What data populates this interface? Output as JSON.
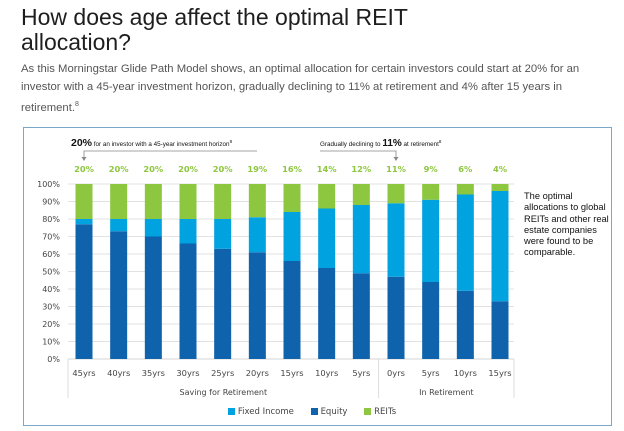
{
  "page": {
    "title": "How does age affect the optimal REIT allocation?",
    "intro": "As this Morningstar Glide Path Model shows, an optimal allocation for certain investors could start at 20% for an investor with a 45-year investment horizon, gradually declining to 11% at retirement and 4% after 15 years in retirement.",
    "intro_footnote": "8"
  },
  "annotations": {
    "left_bold": "20%",
    "left_text": " for an investor with a 45-year investment horizon",
    "left_footnote": "8",
    "right_text_pre": "Gradually declining to ",
    "right_bold": "11%",
    "right_text_post": " at retirement",
    "right_footnote": "8",
    "side_note": "The optimal allocations to global REITs and other real estate companies were found to be comparable."
  },
  "colors": {
    "fixed_income": "#00a3e0",
    "equity": "#0f62ac",
    "reits": "#8dc63f",
    "grid": "#d9d9d9",
    "frame": "#7ba7c9"
  },
  "chart_data": {
    "type": "bar",
    "stacked": true,
    "title": "",
    "xlabel": "",
    "ylabel": "",
    "ylim": [
      0,
      100
    ],
    "yticks": [
      "0%",
      "10%",
      "20%",
      "30%",
      "40%",
      "50%",
      "60%",
      "70%",
      "80%",
      "90%",
      "100%"
    ],
    "grid": true,
    "legend_position": "bottom",
    "categories": [
      "45yrs",
      "40yrs",
      "35yrs",
      "30yrs",
      "25yrs",
      "20yrs",
      "15yrs",
      "10yrs",
      "5yrs",
      "0yrs",
      "5yrs",
      "10yrs",
      "15yrs"
    ],
    "groups": [
      {
        "label": "Saving for Retirement",
        "count": 9
      },
      {
        "label": "In Retirement",
        "count": 4
      }
    ],
    "series": [
      {
        "name": "Equity",
        "key": "equity",
        "values": [
          77,
          73,
          70,
          66,
          63,
          61,
          56,
          52,
          49,
          47,
          44,
          39,
          33
        ]
      },
      {
        "name": "Fixed Income",
        "key": "fixed_income",
        "values": [
          3,
          7,
          10,
          14,
          17,
          20,
          28,
          34,
          39,
          42,
          47,
          55,
          63
        ]
      },
      {
        "name": "REITs",
        "key": "reits",
        "values": [
          20,
          20,
          20,
          20,
          20,
          19,
          16,
          14,
          12,
          11,
          9,
          6,
          4
        ]
      }
    ],
    "top_labels": [
      "20%",
      "20%",
      "20%",
      "20%",
      "20%",
      "19%",
      "16%",
      "14%",
      "12%",
      "11%",
      "9%",
      "6%",
      "4%"
    ],
    "legend": [
      "Fixed Income",
      "Equity",
      "REITs"
    ]
  }
}
